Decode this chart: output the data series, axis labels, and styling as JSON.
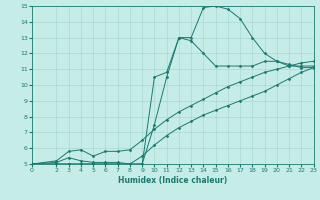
{
  "xlabel": "Humidex (Indice chaleur)",
  "ylabel": "",
  "background_color": "#c5ece6",
  "grid_color": "#aad8d2",
  "line_color": "#1a7a6e",
  "xlim": [
    0,
    23
  ],
  "ylim": [
    5,
    15
  ],
  "xticks": [
    0,
    2,
    3,
    4,
    5,
    6,
    7,
    8,
    9,
    10,
    11,
    12,
    13,
    14,
    15,
    16,
    17,
    18,
    19,
    20,
    21,
    22,
    23
  ],
  "yticks": [
    5,
    6,
    7,
    8,
    9,
    10,
    11,
    12,
    13,
    14,
    15
  ],
  "series": [
    {
      "x": [
        0,
        2,
        3,
        4,
        5,
        6,
        7,
        8,
        9,
        10,
        11,
        12,
        13,
        14,
        15,
        16,
        17,
        18,
        19,
        20,
        21,
        22,
        23
      ],
      "y": [
        5,
        5,
        5,
        5,
        5,
        5,
        5,
        5,
        5,
        10.5,
        10.8,
        13,
        13,
        14.9,
        15.0,
        14.8,
        14.2,
        13.0,
        12.0,
        11.5,
        11.3,
        11.1,
        11.1
      ]
    },
    {
      "x": [
        0,
        2,
        3,
        4,
        5,
        6,
        7,
        8,
        9,
        10,
        11,
        12,
        13,
        14,
        15,
        16,
        17,
        18,
        19,
        20,
        21,
        22,
        23
      ],
      "y": [
        5,
        5,
        5,
        5,
        5,
        5,
        5,
        5,
        5,
        7.5,
        10.5,
        13.0,
        12.8,
        12.0,
        11.2,
        11.2,
        11.2,
        11.2,
        11.5,
        11.5,
        11.2,
        11.2,
        11.2
      ]
    },
    {
      "x": [
        0,
        2,
        3,
        4,
        5,
        6,
        7,
        8,
        9,
        10,
        11,
        12,
        13,
        14,
        15,
        16,
        17,
        18,
        19,
        20,
        21,
        22,
        23
      ],
      "y": [
        5,
        5.2,
        5.8,
        5.9,
        5.5,
        5.8,
        5.8,
        5.9,
        6.5,
        7.2,
        7.8,
        8.3,
        8.7,
        9.1,
        9.5,
        9.9,
        10.2,
        10.5,
        10.8,
        11.0,
        11.2,
        11.4,
        11.5
      ]
    },
    {
      "x": [
        0,
        2,
        3,
        4,
        5,
        6,
        7,
        8,
        9,
        10,
        11,
        12,
        13,
        14,
        15,
        16,
        17,
        18,
        19,
        20,
        21,
        22,
        23
      ],
      "y": [
        5,
        5.1,
        5.4,
        5.2,
        5.1,
        5.1,
        5.1,
        5.0,
        5.5,
        6.2,
        6.8,
        7.3,
        7.7,
        8.1,
        8.4,
        8.7,
        9.0,
        9.3,
        9.6,
        10.0,
        10.4,
        10.8,
        11.1
      ]
    }
  ]
}
